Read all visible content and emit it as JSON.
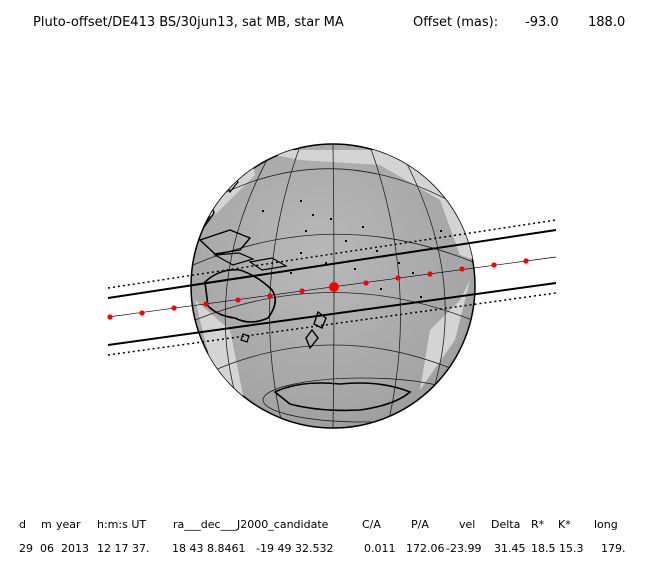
{
  "header": {
    "title": "Pluto-offset/DE413 BS/30jun13, sat MB, star MA",
    "offset_label": "Offset (mas):",
    "offset_x": "-93.0",
    "offset_y": "188.0"
  },
  "table": {
    "headers": [
      "d",
      "m",
      "year",
      "h:m:s UT",
      "ra___dec___J2000_candidate",
      "C/A",
      "P/A",
      "vel",
      "Delta",
      "R*",
      "K*",
      "long"
    ],
    "values": [
      "29",
      "06",
      "2013",
      "12 17 37.",
      "18 43  8.8461",
      "-19 49  32.532",
      "0.011",
      "172.06",
      "-23.99",
      "31.45",
      "18.5",
      "15.3",
      "179."
    ]
  },
  "colors": {
    "globe_fill": "#a9a9a9",
    "globe_light": "#d4d4d4",
    "track": "#ff0000",
    "lines": "#000000"
  }
}
